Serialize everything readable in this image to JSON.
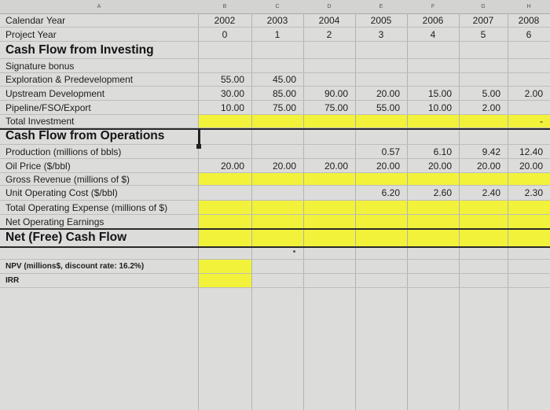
{
  "columns": [
    "A",
    "B",
    "C",
    "D",
    "E",
    "F",
    "G",
    "H"
  ],
  "rows": [
    {
      "label": "Calendar Year",
      "style": "normal",
      "values": [
        "2002",
        "2003",
        "2004",
        "2005",
        "2006",
        "2007",
        "2008"
      ]
    },
    {
      "label": "Project Year",
      "style": "normal",
      "values": [
        "0",
        "1",
        "2",
        "3",
        "4",
        "5",
        "6"
      ]
    },
    {
      "label": "Cash Flow from Investing",
      "style": "section",
      "values": [
        "",
        "",
        "",
        "",
        "",
        "",
        ""
      ]
    },
    {
      "label": "Signature bonus",
      "style": "normal",
      "values": [
        "",
        "",
        "",
        "",
        "",
        "",
        ""
      ]
    },
    {
      "label": "Exploration & Predevelopment",
      "style": "normal",
      "values": [
        "55.00",
        "45.00",
        "",
        "",
        "",
        "",
        ""
      ]
    },
    {
      "label": "Upstream Development",
      "style": "normal",
      "values": [
        "30.00",
        "85.00",
        "90.00",
        "20.00",
        "15.00",
        "5.00",
        "2.00"
      ]
    },
    {
      "label": "Pipeline/FSO/Export",
      "style": "normal",
      "values": [
        "10.00",
        "75.00",
        "75.00",
        "55.00",
        "10.00",
        "2.00",
        ""
      ]
    },
    {
      "label": "Total Investment",
      "style": "normal",
      "values": [
        "",
        "",
        "",
        "",
        "",
        "",
        "-"
      ]
    },
    {
      "label": "Cash Flow from Operations",
      "style": "section",
      "values": [
        "",
        "",
        "",
        "",
        "",
        "",
        ""
      ]
    },
    {
      "label": "Production (millions of bbls)",
      "style": "normal",
      "values": [
        "",
        "",
        "",
        "0.57",
        "6.10",
        "9.42",
        "12.40"
      ]
    },
    {
      "label": "Oil Price ($/bbl)",
      "style": "normal",
      "values": [
        "20.00",
        "20.00",
        "20.00",
        "20.00",
        "20.00",
        "20.00",
        "20.00"
      ]
    },
    {
      "label": "Gross Revenue (millions of $)",
      "style": "normal",
      "values": [
        "",
        "",
        "",
        "",
        "",
        "",
        ""
      ]
    },
    {
      "label": "Unit Operating Cost ($/bbl)",
      "style": "normal",
      "values": [
        "",
        "",
        "",
        "6.20",
        "2.60",
        "2.40",
        "2.30"
      ]
    },
    {
      "label": "Total Operating Expense (millions of $)",
      "style": "normal",
      "values": [
        "",
        "",
        "",
        "",
        "",
        "",
        ""
      ]
    },
    {
      "label": "Net Operating Earnings",
      "style": "normal",
      "values": [
        "",
        "",
        "",
        "",
        "",
        "",
        ""
      ]
    },
    {
      "label": "Net (Free) Cash Flow",
      "style": "section",
      "values": [
        "",
        "",
        "",
        "",
        "",
        "",
        ""
      ]
    },
    {
      "label": "",
      "style": "normal",
      "values": [
        "",
        "",
        "",
        "",
        "",
        "",
        ""
      ]
    },
    {
      "label": "NPV (millions$, discount rate: 16.2%)",
      "style": "small",
      "values": [
        "",
        "",
        "",
        "",
        "",
        "",
        ""
      ]
    },
    {
      "label": "IRR",
      "style": "small",
      "values": [
        "",
        "",
        "",
        "",
        "",
        "",
        ""
      ]
    }
  ],
  "highlight_color": "#f2f23a"
}
